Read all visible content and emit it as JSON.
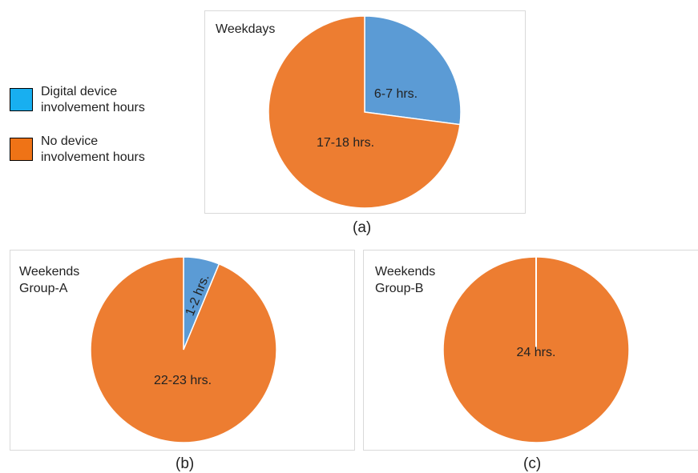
{
  "legend": [
    {
      "label": "Digital device\ninvolvement hours",
      "color": "#18aff0"
    },
    {
      "label": "No device\ninvolvement hours",
      "color": "#ef7316"
    }
  ],
  "slice_colors": {
    "device": "#5b9bd5",
    "no_device": "#ed7d31"
  },
  "chart_data": [
    {
      "type": "pie",
      "title": "Weekdays",
      "caption": "(a)",
      "slices": [
        {
          "label": "6-7 hrs.",
          "value": 6.5
        },
        {
          "label": "17-18 hrs.",
          "value": 17.5
        }
      ]
    },
    {
      "type": "pie",
      "title": "Weekends\nGroup-A",
      "caption": "(b)",
      "slices": [
        {
          "label": "1-2 hrs.",
          "value": 1.5
        },
        {
          "label": "22-23 hrs.",
          "value": 22.5
        }
      ]
    },
    {
      "type": "pie",
      "title": "Weekends\nGroup-B",
      "caption": "(c)",
      "slices": [
        {
          "label": "",
          "value": 0
        },
        {
          "label": "24 hrs.",
          "value": 24
        }
      ]
    }
  ]
}
